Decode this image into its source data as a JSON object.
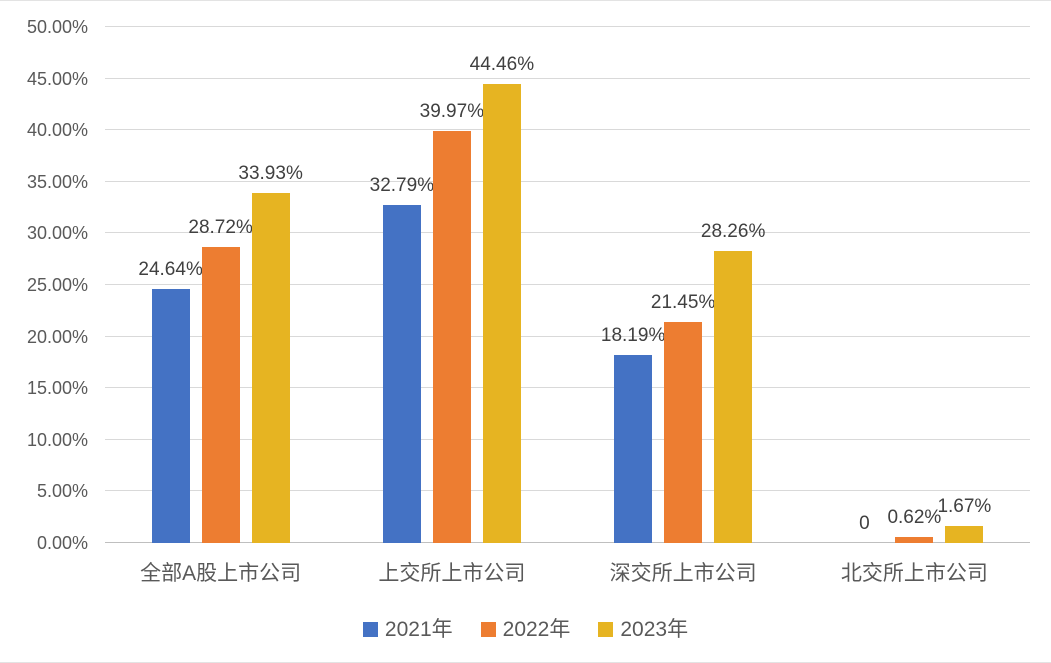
{
  "chart_data": {
    "type": "bar",
    "title": "",
    "categories": [
      "全部A股上市公司",
      "上交所上市公司",
      "深交所上市公司",
      "北交所上市公司"
    ],
    "series": [
      {
        "name": "2021年",
        "color": "#4472C4",
        "values": [
          24.64,
          32.79,
          18.19,
          0
        ],
        "labels": [
          "24.64%",
          "32.79%",
          "18.19%",
          "0"
        ]
      },
      {
        "name": "2022年",
        "color": "#ED7D31",
        "values": [
          28.72,
          39.97,
          21.45,
          0.62
        ],
        "labels": [
          "28.72%",
          "39.97%",
          "21.45%",
          "0.62%"
        ]
      },
      {
        "name": "2023年",
        "color": "#E6B422",
        "values": [
          33.93,
          44.46,
          28.26,
          1.67
        ],
        "labels": [
          "33.93%",
          "44.46%",
          "28.26%",
          "1.67%"
        ]
      }
    ],
    "y_axis": {
      "min": 0,
      "max": 50,
      "step": 5,
      "tick_labels": [
        "0.00%",
        "5.00%",
        "10.00%",
        "15.00%",
        "20.00%",
        "25.00%",
        "30.00%",
        "35.00%",
        "40.00%",
        "45.00%",
        "50.00%"
      ]
    },
    "grid": true,
    "legend_position": "bottom",
    "colors": {
      "gridline": "#D9D9D9",
      "axis_line": "#BFBFBF",
      "tick_text": "#595959",
      "data_label_text": "#404040",
      "background": "#FFFFFF"
    }
  }
}
